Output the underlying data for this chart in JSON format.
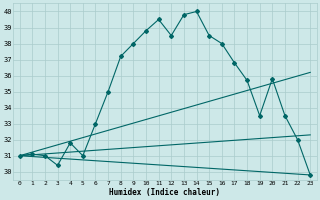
{
  "xlabel": "Humidex (Indice chaleur)",
  "background_color": "#cde8e8",
  "grid_color": "#aacccc",
  "line_color": "#006666",
  "xlim": [
    -0.5,
    23.5
  ],
  "ylim": [
    29.5,
    40.5
  ],
  "xticks": [
    0,
    1,
    2,
    3,
    4,
    5,
    6,
    7,
    8,
    9,
    10,
    11,
    12,
    13,
    14,
    15,
    16,
    17,
    18,
    19,
    20,
    21,
    22,
    23
  ],
  "yticks": [
    30,
    31,
    32,
    33,
    34,
    35,
    36,
    37,
    38,
    39,
    40
  ],
  "series1_x": [
    0,
    1,
    2,
    3,
    4,
    5,
    6,
    7,
    8,
    9,
    10,
    11,
    12,
    13,
    14,
    15,
    16,
    17,
    18,
    19,
    20,
    21,
    22,
    23
  ],
  "series1_y": [
    31.0,
    31.1,
    31.0,
    30.4,
    31.8,
    31.0,
    33.0,
    35.0,
    37.2,
    38.0,
    38.8,
    39.5,
    38.5,
    39.8,
    40.0,
    38.5,
    38.0,
    36.8,
    35.7,
    33.5,
    35.8,
    33.5,
    32.0,
    29.8
  ],
  "series2_x": [
    0,
    23
  ],
  "series2_y": [
    31.0,
    36.2
  ],
  "series3_x": [
    0,
    23
  ],
  "series3_y": [
    31.0,
    32.3
  ],
  "series4_x": [
    0,
    23
  ],
  "series4_y": [
    31.0,
    29.8
  ]
}
